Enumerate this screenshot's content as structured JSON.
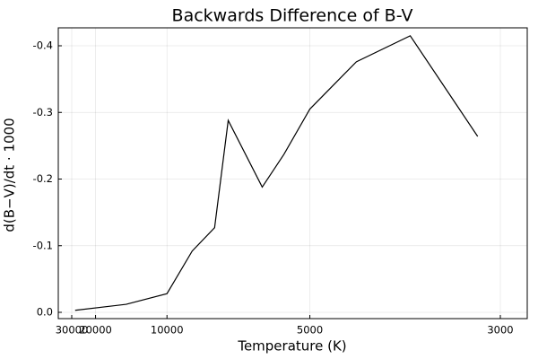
{
  "chart_data": {
    "type": "line",
    "title": "Backwards Difference of B-V",
    "xlabel": "Temperature (K)",
    "ylabel": "d(B−V)/dt · 1000",
    "x_scale": "reciprocal",
    "x_reversed": true,
    "xlim": [
      30000,
      2900
    ],
    "ylim": [
      0.0,
      -0.43
    ],
    "y_reversed": true,
    "grid": true,
    "legend": "none",
    "line_color": "#000000",
    "x_ticks": [
      {
        "value": 30000,
        "label": "30000"
      },
      {
        "value": 20000,
        "label": "20000"
      },
      {
        "value": 10000,
        "label": "10000"
      },
      {
        "value": 5000,
        "label": "5000"
      },
      {
        "value": 3000,
        "label": "3000"
      }
    ],
    "y_ticks": [
      {
        "value": 0.0,
        "label": "0.0"
      },
      {
        "value": -0.1,
        "label": "-0.1"
      },
      {
        "value": -0.2,
        "label": "-0.2"
      },
      {
        "value": -0.3,
        "label": "-0.3"
      },
      {
        "value": -0.4,
        "label": "-0.4"
      }
    ],
    "series": [
      {
        "x": [
          28000,
          14000,
          10000,
          8500,
          7500,
          7000,
          6000,
          5500,
          5000,
          4300,
          3700,
          3150
        ],
        "y": [
          -0.003,
          -0.012,
          -0.028,
          -0.092,
          -0.127,
          -0.288,
          -0.188,
          -0.237,
          -0.305,
          -0.376,
          -0.415,
          -0.264
        ]
      }
    ]
  }
}
